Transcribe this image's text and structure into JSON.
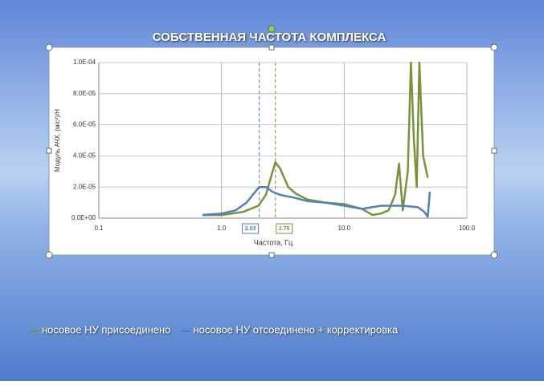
{
  "chart_data": {
    "type": "line",
    "title": "СОБСТВЕННАЯ ЧАСТОТА КОМПЛЕКСА",
    "x_label": "Частота, Гц",
    "y_label": "Модуль АЧХ, (м/с²)/Н",
    "x_scale": "log",
    "xlim": [
      0.1,
      100
    ],
    "xticks": [
      0.1,
      {
        "value": 1,
        "label": "1.0"
      },
      {
        "value": 10,
        "label": "10.0"
      },
      {
        "value": 100,
        "label": "100.0"
      }
    ],
    "ylim": [
      0,
      0.0001
    ],
    "yticks": [
      {
        "value": 0,
        "label": "0.0E+00"
      },
      {
        "value": 2e-05,
        "label": "2.0E-05"
      },
      {
        "value": 4e-05,
        "label": "4.0E-05"
      },
      {
        "value": 6e-05,
        "label": "6.0E-05"
      },
      {
        "value": 8e-05,
        "label": "8.0E-05"
      },
      {
        "value": 0.0001,
        "label": "1.0E-04"
      }
    ],
    "grid": true,
    "legend": "bottom",
    "annotations": [
      {
        "x": 2.03,
        "text": "2.03",
        "color": "#4f81bd"
      },
      {
        "x": 2.75,
        "text": "2.75",
        "color": "#77933c"
      }
    ],
    "series": [
      {
        "name": "носовое НУ присоединено",
        "color": "#77933c",
        "x": [
          0.7,
          1.0,
          1.5,
          2.0,
          2.3,
          2.5,
          2.75,
          3.0,
          3.5,
          4,
          5,
          7,
          10,
          14,
          17,
          20,
          23,
          26,
          28,
          30,
          33,
          35,
          37,
          39,
          41,
          44,
          48
        ],
        "values": [
          2e-06,
          2e-06,
          4e-06,
          8e-06,
          1.5e-05,
          2.5e-05,
          3.6e-05,
          3.2e-05,
          2e-05,
          1.6e-05,
          1.2e-05,
          1e-05,
          9e-06,
          6e-06,
          2e-06,
          3e-06,
          5e-06,
          1.5e-05,
          3.5e-05,
          5e-06,
          3e-05,
          0.0001,
          5e-05,
          2e-05,
          0.0001,
          4e-05,
          2.6e-05
        ]
      },
      {
        "name": "носовое НУ отсоединено + корректировка",
        "color": "#4f81bd",
        "x": [
          0.7,
          1.0,
          1.3,
          1.6,
          1.8,
          2.03,
          2.3,
          2.6,
          3,
          4,
          5,
          7,
          10,
          14,
          20,
          30,
          40,
          45,
          48,
          50
        ],
        "values": [
          2e-06,
          3e-06,
          5e-06,
          1e-05,
          1.5e-05,
          2e-05,
          2e-05,
          1.7e-05,
          1.5e-05,
          1.3e-05,
          1.1e-05,
          1e-05,
          8e-06,
          6e-06,
          8e-06,
          8e-06,
          7e-06,
          4e-06,
          1e-06,
          1.7e-05
        ]
      }
    ]
  }
}
